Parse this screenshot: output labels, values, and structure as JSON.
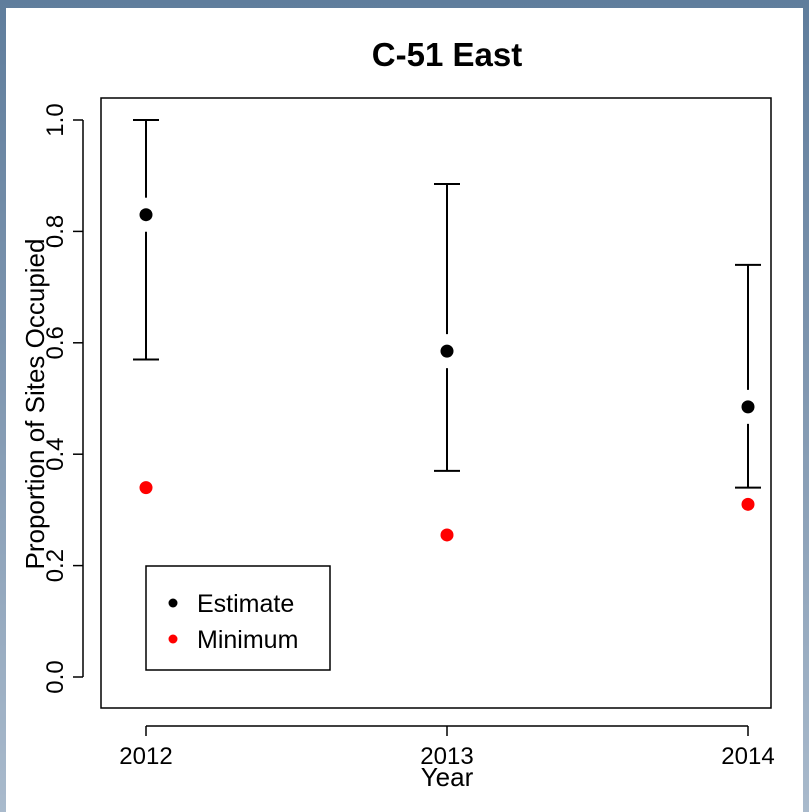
{
  "chart_data": {
    "type": "scatter",
    "title": "C-51 East",
    "xlabel": "Year",
    "ylabel": "Proportion of Sites Occupied",
    "categories": [
      "2012",
      "2013",
      "2014"
    ],
    "ylim": [
      0.0,
      1.0
    ],
    "y_ticks": [
      "0.0",
      "0.2",
      "0.4",
      "0.6",
      "0.8",
      "1.0"
    ],
    "y_tick_values": [
      0.0,
      0.2,
      0.4,
      0.6,
      0.8,
      1.0
    ],
    "series": [
      {
        "name": "Estimate",
        "color": "#000000",
        "values": [
          0.83,
          0.585,
          0.485
        ],
        "error_low": [
          0.57,
          0.37,
          0.34
        ],
        "error_high": [
          1.0,
          0.885,
          0.74
        ]
      },
      {
        "name": "Minimum",
        "color": "#ff0000",
        "values": [
          0.34,
          0.255,
          0.31
        ]
      }
    ],
    "legend_position": "bottom-left",
    "grid": false
  }
}
